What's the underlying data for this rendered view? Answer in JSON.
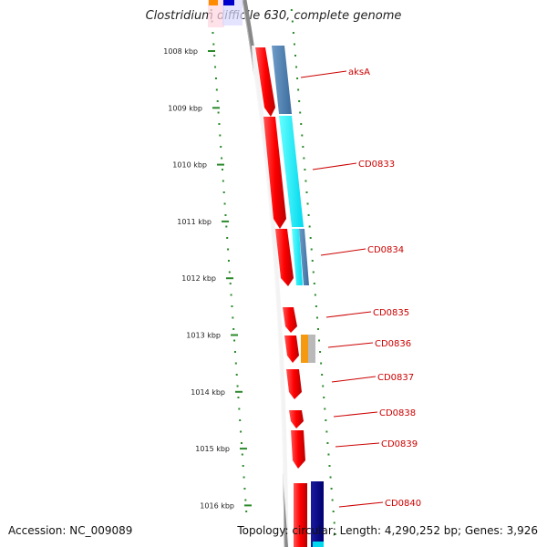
{
  "title": "Clostridium difficile 630, complete genome",
  "footer": {
    "accession": "Accession: NC_009089",
    "summary": "Topology: circular; Length: 4,290,252 bp; Genes: 3,926"
  },
  "colors": {
    "strand_forward": "#ee0000",
    "scale_tick": "#2a8a2a",
    "label": "#cc0000",
    "backbone": "#888888"
  },
  "scale": {
    "ticks": [
      "1008 kbp",
      "1009 kbp",
      "1010 kbp",
      "1011 kbp",
      "1012 kbp",
      "1013 kbp",
      "1014 kbp",
      "1015 kbp",
      "1016 kbp"
    ]
  },
  "genes": [
    {
      "name": "aksA"
    },
    {
      "name": "CD0833"
    },
    {
      "name": "CD0834"
    },
    {
      "name": "CD0835"
    },
    {
      "name": "CD0836"
    },
    {
      "name": "CD0837"
    },
    {
      "name": "CD0838"
    },
    {
      "name": "CD0839"
    },
    {
      "name": "CD0840"
    }
  ]
}
